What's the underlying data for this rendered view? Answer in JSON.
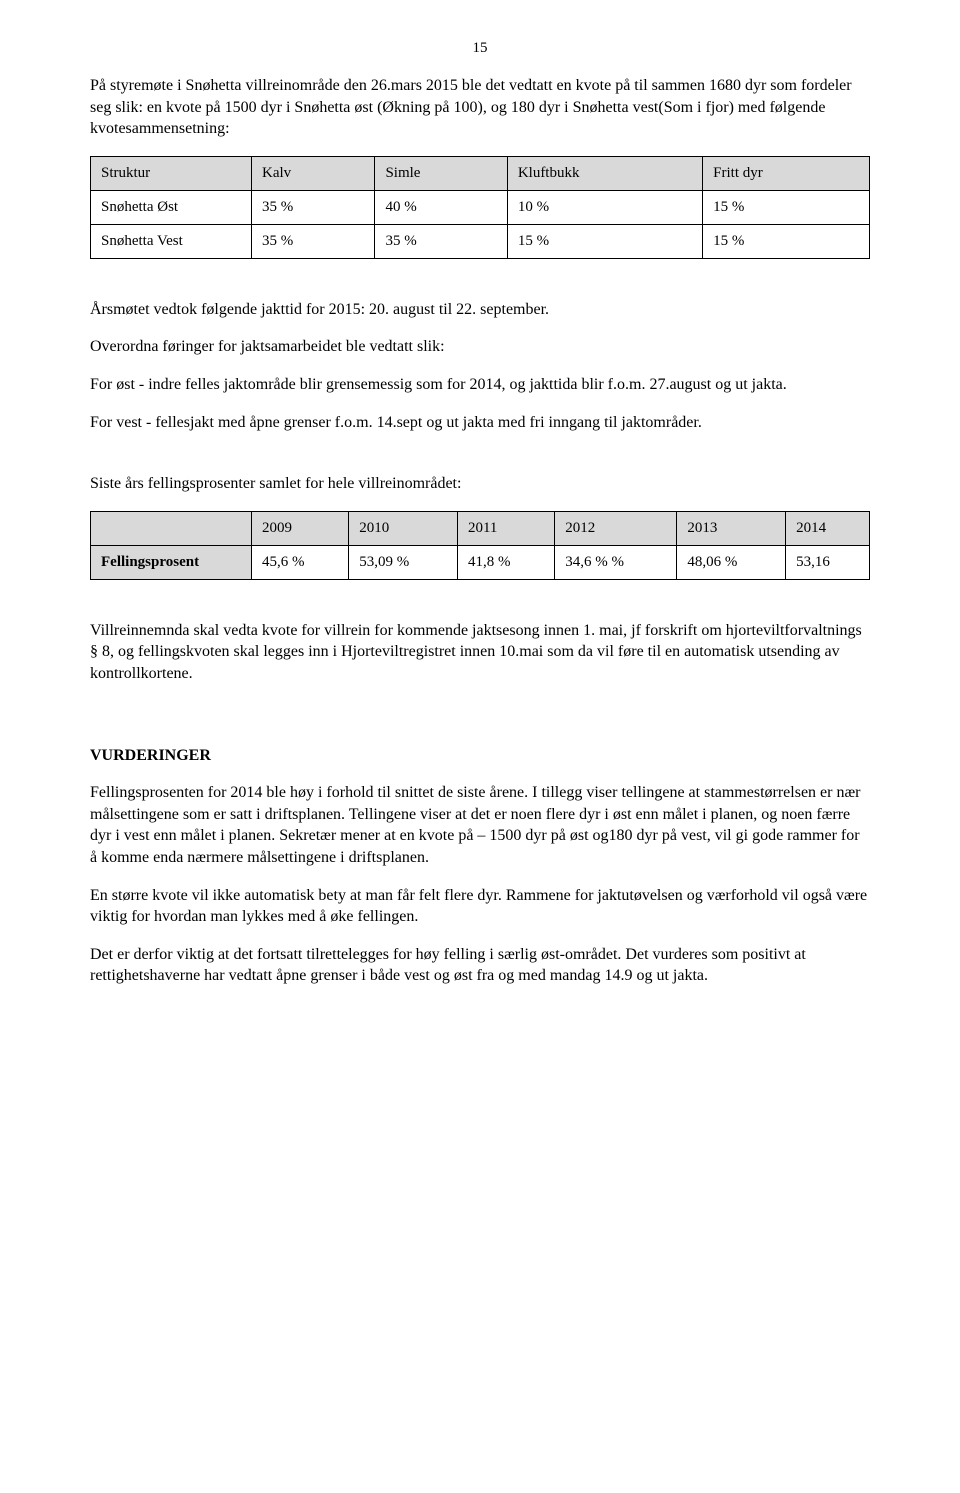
{
  "page_number": "15",
  "para1": "På styremøte i Snøhetta villreinområde den 26.mars 2015 ble det vedtatt en kvote på til sammen 1680 dyr som fordeler seg slik: en kvote på 1500 dyr i Snøhetta øst (Økning på 100), og 180 dyr i Snøhetta vest(Som i fjor) med følgende kvotesammensetning:",
  "table1": {
    "columns": [
      "Struktur",
      "Kalv",
      "Simle",
      "Kluftbukk",
      "Fritt dyr"
    ],
    "rows": [
      [
        "Snøhetta Øst",
        "35 %",
        "40 %",
        "10 %",
        "15 %"
      ],
      [
        "Snøhetta Vest",
        "35 %",
        "35 %",
        "15 %",
        "15 %"
      ]
    ],
    "header_bg": "#d9d9d9",
    "border_color": "#000000"
  },
  "para2": "Årsmøtet vedtok følgende jakttid for 2015: 20. august til 22. september.",
  "para3": "Overordna føringer for jaktsamarbeidet ble vedtatt slik:",
  "para4": "For øst - indre felles jaktområde blir grensemessig som for 2014, og jakttida blir f.o.m. 27.august og ut jakta.",
  "para5": "For vest - fellesjakt med åpne grenser f.o.m. 14.sept og ut jakta med fri inngang til jaktområder.",
  "para6": "Siste års fellingsprosenter samlet for hele villreinområdet:",
  "table2": {
    "columns": [
      "",
      "2009",
      "2010",
      "2011",
      "2012",
      "2013",
      "2014"
    ],
    "row_label": "Fellingsprosent",
    "row_values": [
      "45,6 %",
      "53,09 %",
      "41,8 %",
      "34,6 % %",
      "48,06 %",
      "53,16"
    ],
    "header_bg": "#d9d9d9",
    "border_color": "#000000"
  },
  "para7": "Villreinnemnda skal vedta kvote for villrein for kommende jaktsesong innen 1. mai, jf forskrift om hjorteviltforvaltnings § 8, og fellingskvoten skal legges inn i Hjorteviltregistret innen 10.mai som da vil føre til en automatisk utsending av kontrollkortene.",
  "heading": "VURDERINGER",
  "para8": "Fellingsprosenten for 2014 ble høy i forhold til snittet de siste årene. I tillegg viser tellingene at stammestørrelsen er nær målsettingene som er satt i driftsplanen. Tellingene viser at det er noen flere dyr i øst enn målet i planen, og noen færre dyr i vest enn målet i planen. Sekretær mener at en kvote på – 1500 dyr på øst og180 dyr på vest, vil gi gode rammer for å komme enda nærmere målsettingene i driftsplanen.",
  "para9": "En større kvote vil ikke automatisk bety at man får felt flere dyr. Rammene for jaktutøvelsen og værforhold vil også være viktig for hvordan man lykkes med å øke fellingen.",
  "para10": "Det er derfor viktig at det fortsatt tilrettelegges for høy felling i særlig øst-området. Det vurderes som positivt at rettighetshaverne har vedtatt åpne grenser i både vest og øst fra og med mandag 14.9 og ut jakta."
}
